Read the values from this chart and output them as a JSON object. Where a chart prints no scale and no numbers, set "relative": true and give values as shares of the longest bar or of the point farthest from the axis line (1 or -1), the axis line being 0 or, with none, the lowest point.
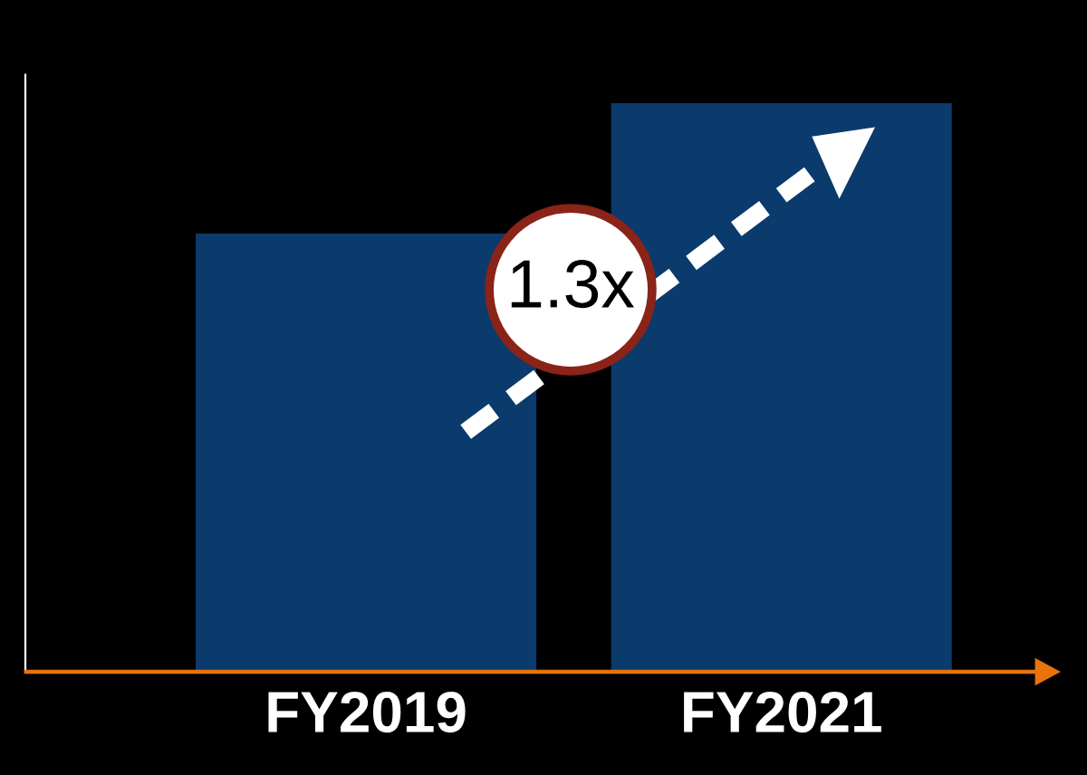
{
  "chart_data": {
    "type": "bar",
    "relative": true,
    "categories": [
      "FY2019",
      "FY2021"
    ],
    "values": [
      0.77,
      1
    ],
    "color": "#0b3a6c",
    "annotations": [
      "1.3x"
    ]
  }
}
